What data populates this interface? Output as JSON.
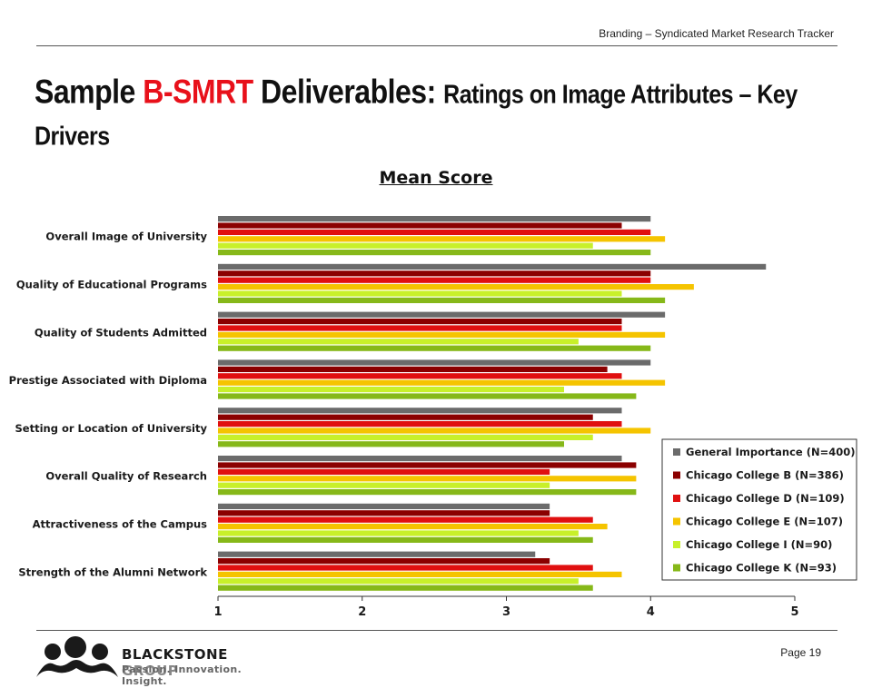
{
  "header": {
    "tracker_label": "Branding – Syndicated Market Research Tracker"
  },
  "title": {
    "part1": "Sample ",
    "highlight": "B-SMRT",
    "part2": " Deliverables: ",
    "subtitle": "Ratings on Image Attributes – Key Drivers"
  },
  "footer": {
    "page_label": "Page  19",
    "logo_name_1": "BLACKSTONE",
    "logo_name_2": " GROUP",
    "logo_tagline": "Passion. Innovation. Insight."
  },
  "chart_data": {
    "type": "bar",
    "orientation": "horizontal",
    "title": "Mean Score",
    "xlim": [
      1,
      5
    ],
    "xticks": [
      1,
      2,
      3,
      4,
      5
    ],
    "grid": false,
    "legend_position": "bottom-right",
    "categories": [
      "Overall Image of University",
      "Quality of Educational Programs",
      "Quality of Students Admitted",
      "Prestige Associated with Diploma",
      "Setting or Location of University",
      "Overall Quality of Research",
      "Attractiveness of the Campus",
      "Strength of the Alumni Network"
    ],
    "series": [
      {
        "name": "General Importance (N=400)",
        "color": "#6b6b6b",
        "values": [
          4.0,
          4.8,
          4.1,
          4.0,
          3.8,
          3.8,
          3.3,
          3.2
        ]
      },
      {
        "name": "Chicago College B (N=386)",
        "color": "#8b0000",
        "values": [
          3.8,
          4.0,
          3.8,
          3.7,
          3.6,
          3.9,
          3.3,
          3.3
        ]
      },
      {
        "name": "Chicago College D (N=109)",
        "color": "#e01010",
        "values": [
          4.0,
          4.0,
          3.8,
          3.8,
          3.8,
          3.3,
          3.6,
          3.6
        ]
      },
      {
        "name": "Chicago College E (N=107)",
        "color": "#f5c400",
        "values": [
          4.1,
          4.3,
          4.1,
          4.1,
          4.0,
          3.9,
          3.7,
          3.8
        ]
      },
      {
        "name": "Chicago College I (N=90)",
        "color": "#c8f02a",
        "values": [
          3.6,
          3.8,
          3.5,
          3.4,
          3.6,
          3.3,
          3.5,
          3.5
        ]
      },
      {
        "name": "Chicago College K (N=93)",
        "color": "#86b819",
        "values": [
          4.0,
          4.1,
          4.0,
          3.9,
          3.4,
          3.9,
          3.6,
          3.6
        ]
      }
    ]
  }
}
